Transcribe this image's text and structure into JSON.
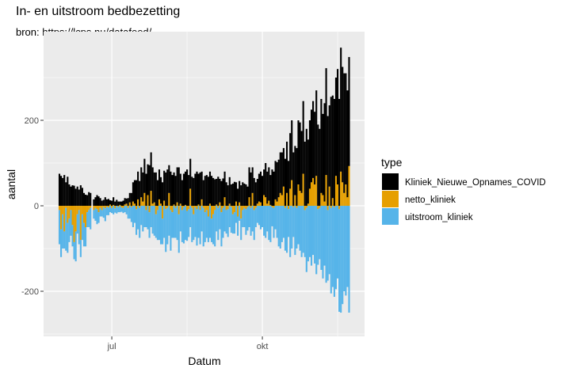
{
  "chart_data": {
    "type": "bar",
    "stacked": true,
    "title": "In- en uitstroom bedbezetting",
    "subtitle": "bron: https://lcps.nu/datafeed/",
    "xlabel": "Datum",
    "ylabel": "aantal",
    "x_ticks": [
      {
        "label": "jul",
        "date": "2020-07-01"
      },
      {
        "label": "okt",
        "date": "2020-10-01"
      }
    ],
    "y_ticks": [
      200,
      0,
      -200
    ],
    "ylim": [
      -300,
      400
    ],
    "grid": true,
    "legend": {
      "title": "type",
      "placement": "right"
    },
    "colors": {
      "Kliniek_Nieuwe_Opnames_COVID": "#000000",
      "netto_kliniek": "#E69F00",
      "uitstroom_kliniek": "#56B4E9"
    },
    "dates": [
      "2020-05-30",
      "2020-05-31",
      "2020-06-01",
      "2020-06-02",
      "2020-06-03",
      "2020-06-04",
      "2020-06-05",
      "2020-06-06",
      "2020-06-07",
      "2020-06-08",
      "2020-06-09",
      "2020-06-10",
      "2020-06-11",
      "2020-06-12",
      "2020-06-13",
      "2020-06-14",
      "2020-06-15",
      "2020-06-16",
      "2020-06-17",
      "2020-06-18",
      "2020-06-19",
      "2020-06-20",
      "2020-06-21",
      "2020-06-22",
      "2020-06-23",
      "2020-06-24",
      "2020-06-25",
      "2020-06-26",
      "2020-06-27",
      "2020-06-28",
      "2020-06-29",
      "2020-06-30",
      "2020-07-01",
      "2020-07-02",
      "2020-07-03",
      "2020-07-04",
      "2020-07-05",
      "2020-07-06",
      "2020-07-07",
      "2020-07-08",
      "2020-07-09",
      "2020-07-10",
      "2020-07-11",
      "2020-07-12",
      "2020-07-13",
      "2020-07-14",
      "2020-07-15",
      "2020-07-16",
      "2020-07-17",
      "2020-07-18",
      "2020-07-19",
      "2020-07-20",
      "2020-07-21",
      "2020-07-22",
      "2020-07-23",
      "2020-07-24",
      "2020-07-25",
      "2020-07-26",
      "2020-07-27",
      "2020-07-28",
      "2020-07-29",
      "2020-07-30",
      "2020-07-31",
      "2020-08-01",
      "2020-08-02",
      "2020-08-03",
      "2020-08-04",
      "2020-08-05",
      "2020-08-06",
      "2020-08-07",
      "2020-08-08",
      "2020-08-09",
      "2020-08-10",
      "2020-08-11",
      "2020-08-12",
      "2020-08-13",
      "2020-08-14",
      "2020-08-15",
      "2020-08-16",
      "2020-08-17",
      "2020-08-18",
      "2020-08-19",
      "2020-08-20",
      "2020-08-21",
      "2020-08-22",
      "2020-08-23",
      "2020-08-24",
      "2020-08-25",
      "2020-08-26",
      "2020-08-27",
      "2020-08-28",
      "2020-08-29",
      "2020-08-30",
      "2020-08-31",
      "2020-09-01",
      "2020-09-02",
      "2020-09-03",
      "2020-09-04",
      "2020-09-05",
      "2020-09-06",
      "2020-09-07",
      "2020-09-08",
      "2020-09-09",
      "2020-09-10",
      "2020-09-11",
      "2020-09-12",
      "2020-09-13",
      "2020-09-14",
      "2020-09-15",
      "2020-09-16",
      "2020-09-17",
      "2020-09-18",
      "2020-09-19",
      "2020-09-20",
      "2020-09-21",
      "2020-09-22",
      "2020-09-23",
      "2020-09-24",
      "2020-09-25",
      "2020-09-26",
      "2020-09-27",
      "2020-09-28",
      "2020-09-29",
      "2020-09-30",
      "2020-10-01",
      "2020-10-02",
      "2020-10-03",
      "2020-10-04",
      "2020-10-05",
      "2020-10-06",
      "2020-10-07",
      "2020-10-08",
      "2020-10-09",
      "2020-10-10",
      "2020-10-11",
      "2020-10-12",
      "2020-10-13",
      "2020-10-14",
      "2020-10-15",
      "2020-10-16",
      "2020-10-17",
      "2020-10-18",
      "2020-10-19",
      "2020-10-20",
      "2020-10-21",
      "2020-10-22",
      "2020-10-23",
      "2020-10-24",
      "2020-10-25",
      "2020-10-26",
      "2020-10-27",
      "2020-10-28",
      "2020-10-29",
      "2020-10-30",
      "2020-10-31",
      "2020-11-01",
      "2020-11-02",
      "2020-11-03",
      "2020-11-04",
      "2020-11-05",
      "2020-11-06",
      "2020-11-07",
      "2020-11-08",
      "2020-11-09",
      "2020-11-10",
      "2020-11-11",
      "2020-11-12",
      "2020-11-13",
      "2020-11-14",
      "2020-11-15",
      "2020-11-16",
      "2020-11-17",
      "2020-11-18",
      "2020-11-19",
      "2020-11-20",
      "2020-11-21",
      "2020-11-22",
      "2020-11-23"
    ],
    "series": [
      {
        "name": "Kliniek_Nieuwe_Opnames_COVID",
        "values": [
          75,
          70,
          65,
          72,
          55,
          68,
          50,
          45,
          48,
          47,
          40,
          45,
          38,
          48,
          42,
          30,
          26,
          25,
          32,
          30,
          0,
          15,
          20,
          25,
          22,
          18,
          12,
          14,
          20,
          15,
          16,
          10,
          12,
          18,
          10,
          14,
          10,
          8,
          10,
          12,
          15,
          12,
          18,
          22,
          30,
          45,
          55,
          60,
          65,
          58,
          70,
          68,
          80,
          75,
          72,
          95,
          90,
          85,
          70,
          78,
          60,
          70,
          62,
          55,
          70,
          78,
          85,
          65,
          80,
          72,
          75,
          70,
          82,
          90,
          70,
          60,
          75,
          78,
          85,
          72,
          70,
          68,
          65,
          75,
          80,
          72,
          78,
          65,
          60,
          70,
          72,
          68,
          75,
          70,
          65,
          62,
          60,
          68,
          55,
          58,
          64,
          60,
          55,
          48,
          62,
          50,
          52,
          56,
          45,
          40,
          50,
          48,
          55,
          52,
          50,
          45,
          70,
          78,
          60,
          65,
          55,
          58,
          65,
          72,
          70,
          60,
          80,
          75,
          78,
          70,
          85,
          80,
          90,
          92,
          88,
          95,
          100,
          90,
          110,
          120,
          105,
          130,
          140,
          125,
          115,
          135,
          150,
          160,
          145,
          170,
          150,
          180,
          150,
          160,
          170,
          180,
          170,
          200,
          190,
          180,
          220,
          190,
          230,
          250,
          210,
          190,
          255,
          240,
          250,
          230,
          270,
          250,
          290,
          270,
          280,
          260,
          250,
          255
        ]
      },
      {
        "name": "netto_kliniek",
        "values": [
          -10,
          -55,
          -20,
          -60,
          -5,
          -40,
          -30,
          -10,
          -45,
          -85,
          -60,
          -20,
          -10,
          -80,
          -20,
          -40,
          -50,
          -15,
          -10,
          -5,
          0,
          -10,
          -5,
          -8,
          -15,
          -5,
          -10,
          -3,
          -6,
          -2,
          -4,
          3,
          -5,
          2,
          -6,
          0,
          -3,
          2,
          -4,
          -5,
          3,
          5,
          -5,
          8,
          -3,
          10,
          5,
          -8,
          15,
          -5,
          20,
          10,
          30,
          -10,
          25,
          -15,
          35,
          5,
          8,
          -20,
          -10,
          15,
          5,
          -30,
          12,
          -8,
          -5,
          30,
          -10,
          -15,
          3,
          -5,
          8,
          -20,
          5,
          -10,
          -3,
          2,
          -12,
          -8,
          40,
          -5,
          -20,
          -3,
          -8,
          3,
          -10,
          15,
          -5,
          -15,
          -10,
          -25,
          5,
          -30,
          -20,
          -10,
          3,
          -5,
          8,
          -15,
          -5,
          20,
          -10,
          -8,
          5,
          -3,
          -20,
          -15,
          10,
          -25,
          8,
          -30,
          -10,
          -5,
          -8,
          -3,
          20,
          -5,
          30,
          -10,
          -5,
          5,
          10,
          8,
          0,
          25,
          20,
          5,
          12,
          2,
          -3,
          -5,
          15,
          10,
          20,
          30,
          25,
          45,
          -5,
          30,
          -8,
          40,
          60,
          -3,
          25,
          -5,
          50,
          35,
          30,
          75,
          -10,
          -5,
          5,
          40,
          55,
          65,
          50,
          70,
          -8,
          -5,
          30,
          25,
          10,
          72,
          -10,
          45,
          -5,
          18,
          -3,
          70,
          50,
          -8,
          80,
          55,
          30,
          50,
          20,
          93
        ]
      },
      {
        "name": "uitstroom_kliniek",
        "values": [
          -80,
          -65,
          -80,
          -40,
          -100,
          -70,
          -55,
          -60,
          -50,
          -40,
          -70,
          -45,
          -80,
          -40,
          -60,
          -55,
          -45,
          -35,
          -40,
          -50,
          0,
          -20,
          -30,
          -35,
          -25,
          -20,
          -15,
          -25,
          -30,
          -20,
          -18,
          -15,
          -12,
          -20,
          -10,
          -18,
          -12,
          -15,
          -10,
          -12,
          -15,
          -20,
          -25,
          -30,
          -35,
          -50,
          -40,
          -60,
          -55,
          -70,
          -45,
          -60,
          -50,
          -40,
          -55,
          -60,
          -50,
          -65,
          -70,
          -55,
          -70,
          -80,
          -90,
          -60,
          -75,
          -100,
          -85,
          -70,
          -95,
          -60,
          -75,
          -70,
          -80,
          -90,
          -60,
          -75,
          -85,
          -80,
          -70,
          -65,
          -50,
          -80,
          -60,
          -70,
          -85,
          -75,
          -80,
          -60,
          -90,
          -70,
          -65,
          -60,
          -75,
          -55,
          -70,
          -85,
          -60,
          -75,
          -55,
          -80,
          -70,
          -60,
          -55,
          -65,
          -50,
          -60,
          -45,
          -50,
          -40,
          -45,
          -35,
          -50,
          -40,
          -45,
          -60,
          -55,
          -50,
          -65,
          -60,
          -70,
          -45,
          -40,
          -45,
          -55,
          -50,
          -70,
          -75,
          -60,
          -80,
          -85,
          -45,
          -70,
          -55,
          -75,
          -95,
          -100,
          -85,
          -75,
          -100,
          -110,
          -65,
          -120,
          -100,
          -70,
          -115,
          -95,
          -90,
          -105,
          -120,
          -110,
          -110,
          -150,
          -130,
          -120,
          -140,
          -115,
          -135,
          -160,
          -130,
          -120,
          -150,
          -170,
          -140,
          -180,
          -165,
          -160,
          -200,
          -190,
          -210,
          -195,
          -170,
          -240,
          -250,
          -230,
          -200,
          -210,
          -190,
          -250
        ]
      }
    ]
  }
}
